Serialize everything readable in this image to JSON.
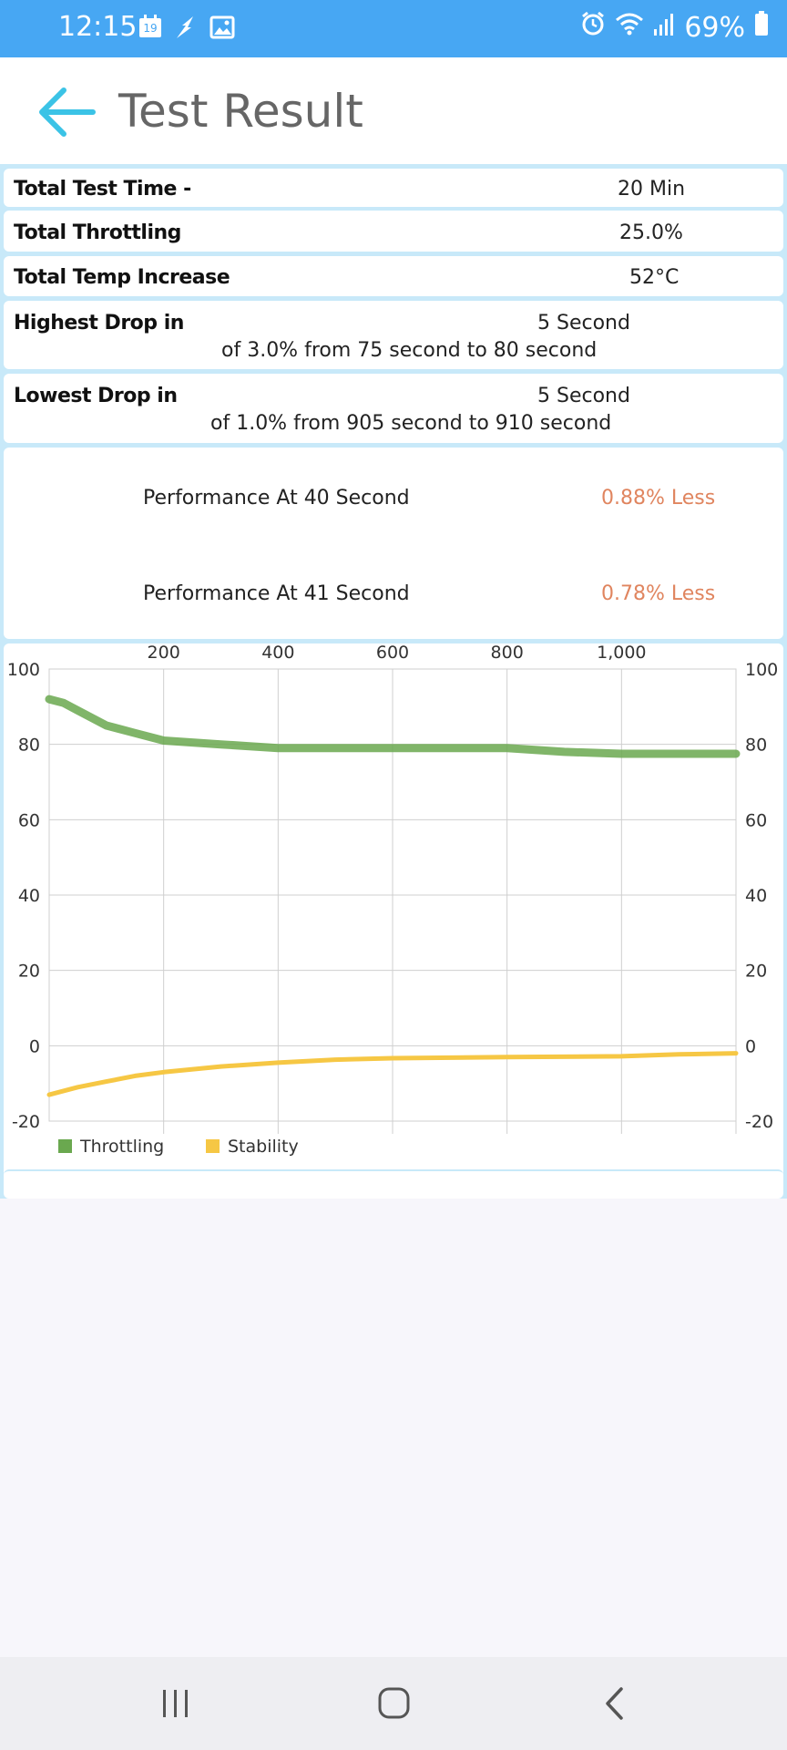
{
  "status_bar": {
    "time": "12:15",
    "calendar_day": "19",
    "battery": "69%",
    "icons_left": [
      "calendar-icon",
      "flash-icon",
      "image-icon"
    ],
    "icons_right": [
      "alarm-icon",
      "wifi-icon",
      "signal-icon",
      "battery-icon"
    ]
  },
  "header": {
    "title": "Test Result",
    "back_icon": "arrow-left-icon"
  },
  "summary": {
    "total_test_time": {
      "label": "Total Test Time -",
      "value": "20 Min"
    },
    "total_throttling": {
      "label": "Total Throttling",
      "value": "25.0%"
    },
    "total_temp_increase": {
      "label": "Total Temp Increase",
      "value": "52°C"
    },
    "highest_drop": {
      "label": "Highest Drop in",
      "value": "5 Second",
      "detail": "of 3.0% from 75 second to  80 second"
    },
    "lowest_drop": {
      "label": "Lowest Drop in",
      "value": "5 Second",
      "detail": "of 1.0% from 905 second to  910 second"
    }
  },
  "performance": [
    {
      "label": "Performance At 40 Second",
      "value": "0.88% Less"
    },
    {
      "label": "Performance At 41 Second",
      "value": "0.78% Less"
    }
  ],
  "chart_data": {
    "type": "line",
    "x_ticks": [
      "200",
      "400",
      "600",
      "800",
      "1,000"
    ],
    "x_tick_values": [
      200,
      400,
      600,
      800,
      1000
    ],
    "xlim": [
      0,
      1200
    ],
    "ylim": [
      -20,
      100
    ],
    "y_ticks": [
      "100",
      "80",
      "60",
      "40",
      "20",
      "0",
      "-20"
    ],
    "grid": true,
    "legend_position": "bottom-left",
    "series": [
      {
        "name": "Throttling",
        "color": "#6aa84f",
        "x": [
          0,
          25,
          50,
          75,
          100,
          125,
          150,
          200,
          250,
          300,
          350,
          400,
          500,
          600,
          700,
          800,
          900,
          1000,
          1100,
          1200
        ],
        "y": [
          92,
          91,
          89,
          87,
          85,
          84,
          83,
          81,
          80.5,
          80,
          79.5,
          79,
          79,
          79,
          79,
          79,
          78,
          77.5,
          77.5,
          77.5
        ]
      },
      {
        "name": "Stability",
        "color": "#f6c744",
        "x": [
          0,
          50,
          100,
          150,
          200,
          300,
          400,
          500,
          600,
          800,
          1000,
          1100,
          1200
        ],
        "y": [
          -13,
          -11,
          -9.5,
          -8,
          -7,
          -5.5,
          -4.5,
          -3.7,
          -3.3,
          -3,
          -2.8,
          -2.3,
          -2
        ]
      }
    ]
  }
}
